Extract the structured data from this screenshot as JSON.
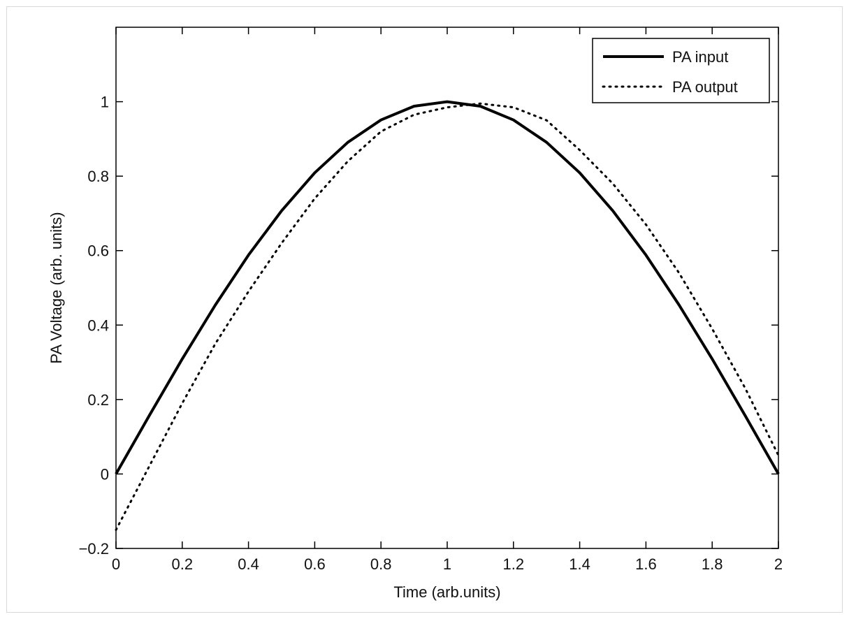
{
  "chart_data": {
    "type": "line",
    "xlabel": "Time (arb.units)",
    "ylabel": "PA  Voltage (arb. units)",
    "xlim": [
      0,
      2
    ],
    "ylim": [
      -0.2,
      1.2
    ],
    "x_ticks": [
      0,
      0.2,
      0.4,
      0.6,
      0.8,
      1,
      1.2,
      1.4,
      1.6,
      1.8,
      2
    ],
    "x_tick_labels": [
      "0",
      "0.2",
      "0.4",
      "0.6",
      "0.8",
      "1",
      "1.2",
      "1.4",
      "1.6",
      "1.8",
      "2"
    ],
    "y_ticks": [
      -0.2,
      0,
      0.2,
      0.4,
      0.6,
      0.8,
      1
    ],
    "y_tick_labels": [
      "−0.2",
      "0",
      "0.2",
      "0.4",
      "0.6",
      "0.8",
      "1"
    ],
    "grid": false,
    "legend_position": "top-right",
    "series": [
      {
        "name": "PA input",
        "style": "solid",
        "color": "#000000",
        "x": [
          0,
          0.1,
          0.2,
          0.3,
          0.4,
          0.5,
          0.6,
          0.7,
          0.8,
          0.9,
          1.0,
          1.1,
          1.2,
          1.3,
          1.4,
          1.5,
          1.6,
          1.7,
          1.8,
          1.9,
          2.0
        ],
        "y": [
          0,
          0.156,
          0.309,
          0.454,
          0.588,
          0.707,
          0.809,
          0.891,
          0.951,
          0.988,
          1.0,
          0.988,
          0.951,
          0.891,
          0.809,
          0.707,
          0.588,
          0.454,
          0.309,
          0.156,
          0
        ]
      },
      {
        "name": "PA output",
        "style": "dotted",
        "color": "#000000",
        "x": [
          0,
          0.1,
          0.2,
          0.3,
          0.4,
          0.5,
          0.6,
          0.7,
          0.8,
          0.9,
          1.0,
          1.05,
          1.1,
          1.15,
          1.2,
          1.3,
          1.4,
          1.5,
          1.6,
          1.7,
          1.8,
          1.9,
          2.0
        ],
        "y": [
          -0.15,
          0.02,
          0.19,
          0.35,
          0.49,
          0.62,
          0.74,
          0.84,
          0.92,
          0.965,
          0.985,
          0.99,
          0.995,
          0.99,
          0.985,
          0.95,
          0.87,
          0.78,
          0.67,
          0.54,
          0.39,
          0.23,
          0.05
        ]
      }
    ]
  }
}
